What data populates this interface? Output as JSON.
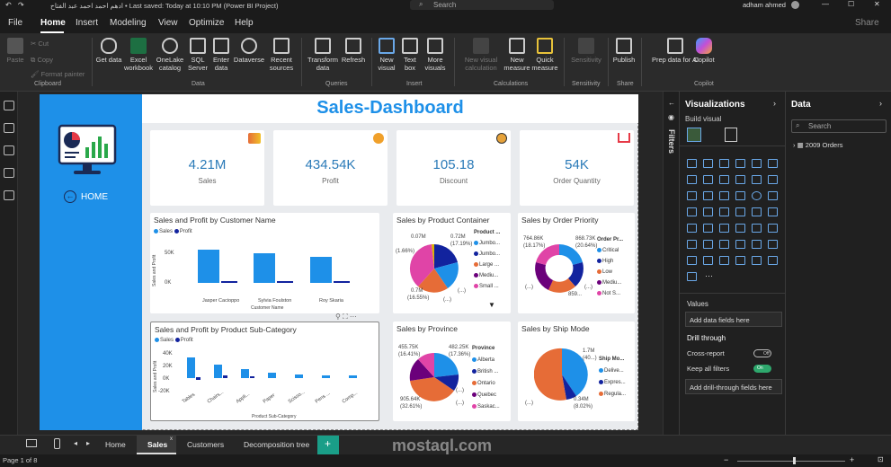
{
  "title_bar": {
    "text": "ادهم احمد احمد عبد الفتاح • Last saved: Today at 10:10 PM (Power BI Project)",
    "search": "Search",
    "user": "adham ahmed"
  },
  "menu": {
    "file": "File",
    "home": "Home",
    "insert": "Insert",
    "modeling": "Modeling",
    "view": "View",
    "optimize": "Optimize",
    "help": "Help",
    "share": "Share"
  },
  "ribbon": {
    "paste": "Paste",
    "cut": "Cut",
    "copy": "Copy",
    "format_painter": "Format painter",
    "clipboard": "Clipboard",
    "get_data": "Get data",
    "excel": "Excel workbook",
    "onelake": "OneLake catalog",
    "sql": "SQL Server",
    "enter": "Enter data",
    "dataverse": "Dataverse",
    "recent": "Recent sources",
    "data": "Data",
    "transform": "Transform data",
    "refresh": "Refresh",
    "queries": "Queries",
    "new_visual": "New visual",
    "text_box": "Text box",
    "more_visuals": "More visuals",
    "insert": "Insert",
    "new_visual_calc": "New visual calculation",
    "new_measure": "New measure",
    "quick_measure": "Quick measure",
    "calculations": "Calculations",
    "sensitivity": "Sensitivity",
    "sensitivity_grp": "Sensitivity",
    "publish": "Publish",
    "share": "Share",
    "prep": "Prep data for AI",
    "copilot": "Copilot",
    "copilot_grp": "Copilot"
  },
  "dashboard": {
    "title": "Sales-Dashboard",
    "home": "HOME",
    "kpis": [
      {
        "value": "4.21M",
        "label": "Sales"
      },
      {
        "value": "434.54K",
        "label": "Profit"
      },
      {
        "value": "105.18",
        "label": "Discount"
      },
      {
        "value": "54K",
        "label": "Order Quantity"
      }
    ],
    "customer_chart": {
      "title": "Sales and Profit by Customer Name",
      "legend_sales": "Sales",
      "legend_profit": "Profit",
      "y_label": "Sales and Profit",
      "y_ticks": [
        "50K",
        "0K"
      ],
      "x_title": "Customer Name",
      "customers": [
        "Jasper Cacioppo",
        "Sylvia Foulston",
        "Roy Skaria"
      ]
    },
    "subcat_chart": {
      "title": "Sales and Profit by Product Sub-Category",
      "legend_sales": "Sales",
      "legend_profit": "Profit",
      "y_label": "Sales and Profit",
      "y_ticks": [
        "40K",
        "20K",
        "0K",
        "-20K"
      ],
      "x_title": "Product Sub-Category",
      "cats": [
        "Tables",
        "Chairs...",
        "Appli...",
        "Paper",
        "Scisso...",
        "Pens ...",
        "Comp..."
      ]
    },
    "container_chart": {
      "title": "Sales by Product Container",
      "legend_title": "Product ...",
      "items": [
        "Jumbo...",
        "Jumbo...",
        "Large ...",
        "Mediu...",
        "Small ..."
      ],
      "lbl1": "0.07M",
      "lbl1b": "(1.66%)",
      "lbl2": "0.72M",
      "lbl2b": "(17.19%)",
      "lbl3": "0.7M",
      "lbl3b": "(16.55%)",
      "lbl4": "(...)",
      "lbl5": "(...)"
    },
    "priority_chart": {
      "title": "Sales by Order Priority",
      "legend_title": "Order Pr...",
      "items": [
        "Critical",
        "High",
        "Low",
        "Mediu...",
        "Not S..."
      ],
      "lbl1": "764.86K",
      "lbl1b": "(18.17%)",
      "lbl2": "868.73K",
      "lbl2b": "(20.64%)",
      "lbl3": "(...)",
      "lbl4": "859...",
      "lbl5": "(...)"
    },
    "province_chart": {
      "title": "Sales by Province",
      "legend_title": "Province",
      "items": [
        "Alberta",
        "British ...",
        "Ontario",
        "Quebec",
        "Saskac..."
      ],
      "lbl1": "455.75K",
      "lbl1b": "(16.41%)",
      "lbl2": "482.25K",
      "lbl2b": "(17.36%)",
      "lbl3": "905.64K",
      "lbl3b": "(32.61%)",
      "lbl4": "(...)",
      "lbl5": "(...)"
    },
    "ship_chart": {
      "title": "Sales by Ship Mode",
      "legend_title": "Ship Mo...",
      "items": [
        "Delive...",
        "Expres...",
        "Regula..."
      ],
      "lbl1": "1.7M",
      "lbl1b": "(40...)",
      "lbl2": "0.34M",
      "lbl2b": "(8.02%)",
      "lbl3": "(...)"
    }
  },
  "filters": "Filters",
  "viz": {
    "title": "Visualizations",
    "build": "Build visual",
    "values": "Values",
    "add_fields": "Add data fields here",
    "drill": "Drill through",
    "cross": "Cross-report",
    "off": "Off",
    "keep": "Keep all filters",
    "on": "On",
    "add_drill": "Add drill-through fields here"
  },
  "data_pane": {
    "title": "Data",
    "search": "Search",
    "table": "2009 Orders"
  },
  "tabs": {
    "home": "Home",
    "sales": "Sales",
    "customers": "Customers",
    "decomp": "Decomposition tree",
    "add": "+"
  },
  "status": {
    "page": "Page 1 of 8",
    "watermark": "mostaql.com"
  },
  "colors": {
    "accent": "#1e90e8",
    "navy": "#12239e",
    "orange": "#e66c37",
    "magenta": "#e044a7",
    "purple": "#6b007b",
    "yellow": "#d9b300"
  }
}
